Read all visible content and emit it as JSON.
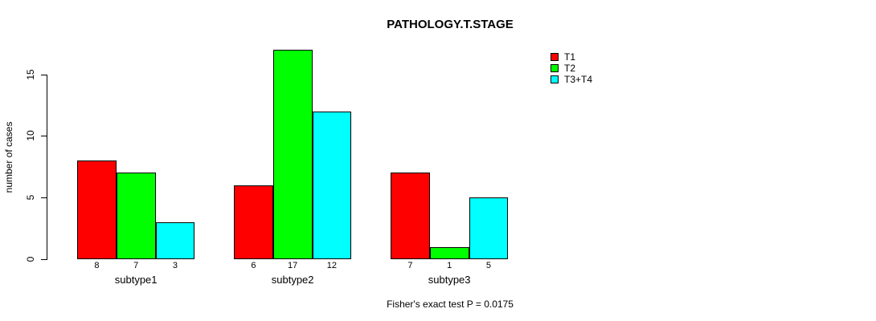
{
  "chart_data": {
    "type": "bar",
    "title": "PATHOLOGY.T.STAGE",
    "ylabel": "number of cases",
    "xlabel": "",
    "categories": [
      "subtype1",
      "subtype2",
      "subtype3"
    ],
    "series": [
      {
        "name": "T1",
        "color": "#ff0000",
        "values": [
          8,
          6,
          7
        ]
      },
      {
        "name": "T2",
        "color": "#00ff00",
        "values": [
          7,
          17,
          1
        ]
      },
      {
        "name": "T3+T4",
        "color": "#00ffff",
        "values": [
          3,
          12,
          5
        ]
      }
    ],
    "yticks": [
      0,
      5,
      10,
      15
    ],
    "ylim": [
      0,
      17
    ],
    "grid": false,
    "legend_position": "top-right",
    "bar_edge_color": "#000000",
    "background_color": "#ffffff",
    "value_labels_shown": true,
    "footnote": "Fisher's exact test P = 0.0175"
  }
}
